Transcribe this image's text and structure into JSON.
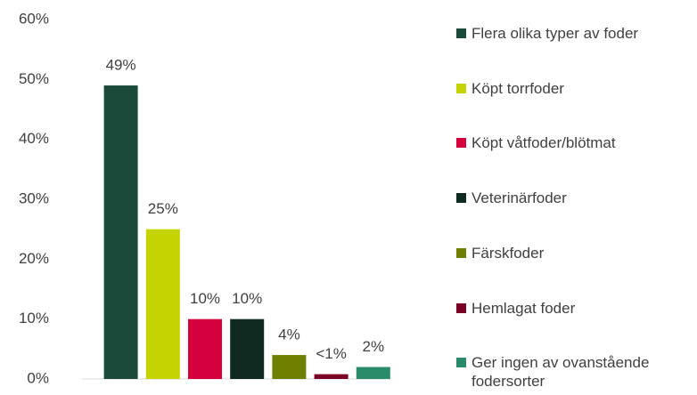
{
  "chart_data": {
    "type": "bar",
    "categories": [
      "Flera olika typer av foder",
      "Köpt torrfoder",
      "Köpt våtfoder/blötmat",
      "Veterinärfoder",
      "Färskfoder",
      "Hemlagat foder",
      "Ger ingen av ovanstående fodersorter"
    ],
    "values": [
      49,
      25,
      10,
      10,
      4,
      0.8,
      2
    ],
    "value_labels": [
      "49%",
      "25%",
      "10%",
      "10%",
      "4%",
      "<1%",
      "2%"
    ],
    "colors": [
      "#1b4a3b",
      "#c5d300",
      "#d4003e",
      "#0f2b21",
      "#6f7f00",
      "#7a0026",
      "#2a8b6b"
    ],
    "ylim": [
      0,
      60
    ],
    "yticks": [
      {
        "value": 0,
        "label": "0%"
      },
      {
        "value": 10,
        "label": "10%"
      },
      {
        "value": 20,
        "label": "20%"
      },
      {
        "value": 30,
        "label": "30%"
      },
      {
        "value": 40,
        "label": "40%"
      },
      {
        "value": 50,
        "label": "50%"
      },
      {
        "value": 60,
        "label": "60%"
      }
    ],
    "legend": "right"
  }
}
